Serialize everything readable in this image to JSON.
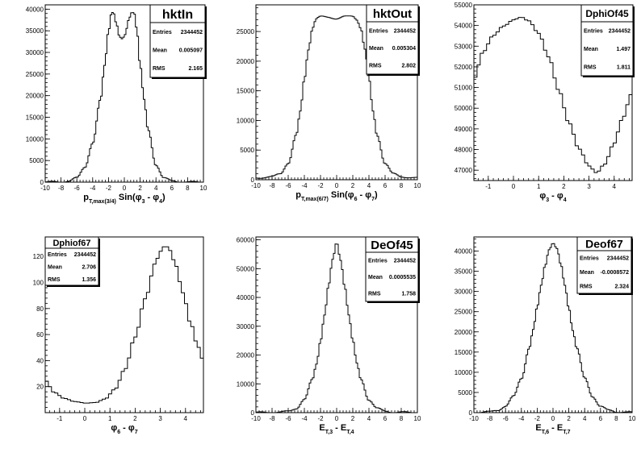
{
  "chart_data": [
    {
      "type": "histogram",
      "stats": {
        "title": "hktIn",
        "entries_label": "Entries",
        "entries": "2344452",
        "mean_label": "Mean",
        "mean": "0.005097",
        "rms_label": "RMS",
        "rms": "2.165"
      },
      "xlabel_parts": [
        [
          "p",
          "n"
        ],
        [
          "T,max(3/4)",
          "sub"
        ],
        [
          " Sin(",
          "n"
        ],
        [
          "φ",
          "n"
        ],
        [
          "3",
          "sub"
        ],
        [
          " - ",
          "n"
        ],
        [
          "φ",
          "n"
        ],
        [
          "4",
          "sub"
        ],
        [
          ")",
          "n"
        ]
      ],
      "ylabel": "",
      "xlim": [
        -10,
        10
      ],
      "ylim": [
        0,
        41000
      ],
      "xticks": [
        -10,
        -8,
        -6,
        -4,
        -2,
        0,
        2,
        4,
        6,
        8,
        10
      ],
      "yticks": [
        0,
        5000,
        10000,
        15000,
        20000,
        25000,
        30000,
        35000,
        40000
      ],
      "profile_x": [
        -10,
        -8,
        -7,
        -6,
        -5,
        -4,
        -3,
        -2.5,
        -2,
        -1.6,
        -1.3,
        -1,
        -0.6,
        -0.3,
        0,
        0.3,
        0.6,
        1,
        1.3,
        1.6,
        2,
        2.5,
        3,
        4,
        5,
        6,
        7,
        8,
        10
      ],
      "profile_y": [
        30,
        50,
        250,
        1000,
        3500,
        9000,
        19000,
        27000,
        35000,
        39500,
        39000,
        36500,
        33500,
        33000,
        33500,
        35500,
        38000,
        39500,
        39000,
        35000,
        27000,
        19000,
        12000,
        4000,
        1000,
        250,
        60,
        30,
        20
      ]
    },
    {
      "type": "histogram",
      "stats": {
        "title": "hktOut",
        "entries_label": "Entries",
        "entries": "2344452",
        "mean_label": "Mean",
        "mean": "0.005304",
        "rms_label": "RMS",
        "rms": "2.802"
      },
      "xlabel_parts": [
        [
          "p",
          "n"
        ],
        [
          "T,max(6/7)",
          "sub"
        ],
        [
          " Sin(",
          "n"
        ],
        [
          "φ",
          "n"
        ],
        [
          "6",
          "sub"
        ],
        [
          " - ",
          "n"
        ],
        [
          "φ",
          "n"
        ],
        [
          "7",
          "sub"
        ],
        [
          ")",
          "n"
        ]
      ],
      "ylabel": "",
      "xlim": [
        -10,
        10
      ],
      "ylim": [
        0,
        29500
      ],
      "xticks": [
        -10,
        -8,
        -6,
        -4,
        -2,
        0,
        2,
        4,
        6,
        8,
        10
      ],
      "yticks": [
        0,
        5000,
        10000,
        15000,
        20000,
        25000
      ],
      "profile_x": [
        -10,
        -8,
        -7,
        -6,
        -5,
        -4.5,
        -4,
        -3.5,
        -3,
        -2.7,
        -2.4,
        -2,
        -1,
        0,
        1,
        2,
        2.4,
        2.7,
        3,
        3.5,
        4,
        4.5,
        5,
        6,
        7,
        8,
        10
      ],
      "profile_y": [
        300,
        500,
        1000,
        2800,
        7500,
        11500,
        17000,
        22000,
        25500,
        26700,
        27300,
        27500,
        27400,
        27200,
        27500,
        27600,
        27200,
        26500,
        25500,
        22000,
        17000,
        11500,
        7500,
        2800,
        1000,
        500,
        300
      ]
    },
    {
      "type": "histogram",
      "stats": {
        "title": "DphiOf45",
        "entries_label": "Entries",
        "entries": "2344452",
        "mean_label": "Mean",
        "mean": "1.497",
        "rms_label": "RMS",
        "rms": "1.811"
      },
      "xlabel_parts": [
        [
          "φ",
          "n"
        ],
        [
          "3",
          "sub"
        ],
        [
          " - ",
          "n"
        ],
        [
          "φ",
          "n"
        ],
        [
          "4",
          "sub"
        ]
      ],
      "ylabel": "",
      "xlim": [
        -1.571,
        4.712
      ],
      "ylim": [
        46500,
        55000
      ],
      "xticks": [
        -1,
        0,
        1,
        2,
        3,
        4
      ],
      "yticks": [
        47000,
        48000,
        49000,
        50000,
        51000,
        52000,
        53000,
        54000,
        55000
      ],
      "profile_x": [
        -1.571,
        -1.2,
        -0.8,
        -0.4,
        0,
        0.3,
        0.6,
        1.0,
        1.4,
        1.8,
        2.2,
        2.6,
        3.0,
        3.3,
        3.6,
        4.0,
        4.3,
        4.712
      ],
      "profile_y": [
        51400,
        52700,
        53500,
        54000,
        54300,
        54400,
        54200,
        53600,
        52500,
        50900,
        49300,
        48000,
        47200,
        46900,
        47300,
        48300,
        49400,
        50700
      ]
    },
    {
      "type": "histogram",
      "stats": {
        "title": "Dphiof67",
        "entries_label": "Entries",
        "entries": "2344452",
        "mean_label": "Mean",
        "mean": "2.706",
        "rms_label": "RMS",
        "rms": "1.356"
      },
      "xlabel_parts": [
        [
          "φ",
          "n"
        ],
        [
          "6",
          "sub"
        ],
        [
          " - ",
          "n"
        ],
        [
          "φ",
          "n"
        ],
        [
          "7",
          "sub"
        ]
      ],
      "ylabel": "",
      "xlim": [
        -1.571,
        4.712
      ],
      "ylim": [
        0,
        135
      ],
      "xticks": [
        -1,
        0,
        1,
        2,
        3,
        4
      ],
      "yticks": [
        20,
        40,
        60,
        80,
        100,
        120
      ],
      "profile_x": [
        -1.571,
        -1.2,
        -0.8,
        -0.4,
        0,
        0.4,
        0.8,
        1.2,
        1.6,
        2.0,
        2.4,
        2.8,
        3.0,
        3.2,
        3.4,
        3.6,
        3.9,
        4.2,
        4.5,
        4.712
      ],
      "profile_y": [
        25,
        16,
        11,
        8,
        7,
        8,
        11,
        18,
        33,
        58,
        88,
        115,
        124,
        128,
        124,
        113,
        92,
        69,
        51,
        40
      ]
    },
    {
      "type": "histogram",
      "stats": {
        "title": "DeOf45",
        "entries_label": "Entries",
        "entries": "2344452",
        "mean_label": "Mean",
        "mean": "0.0005535",
        "rms_label": "RMS",
        "rms": "1.758"
      },
      "xlabel_parts": [
        [
          "E",
          "n"
        ],
        [
          "T,3",
          "sub"
        ],
        [
          " - E",
          "n"
        ],
        [
          "T,4",
          "sub"
        ]
      ],
      "ylabel": "",
      "xlim": [
        -10,
        10
      ],
      "ylim": [
        0,
        61000
      ],
      "xticks": [
        -10,
        -8,
        -6,
        -4,
        -2,
        0,
        2,
        4,
        6,
        8,
        10
      ],
      "yticks": [
        0,
        10000,
        20000,
        30000,
        40000,
        50000,
        60000
      ],
      "profile_x": [
        -10,
        -7,
        -6,
        -5,
        -4,
        -3,
        -2.5,
        -2,
        -1.5,
        -1,
        -0.5,
        0,
        0.5,
        1,
        1.5,
        2,
        2.5,
        3,
        4,
        5,
        6,
        7,
        10
      ],
      "profile_y": [
        50,
        150,
        500,
        1500,
        4500,
        11500,
        17000,
        25000,
        34000,
        44000,
        53000,
        59000,
        53000,
        44000,
        34000,
        25000,
        17000,
        11500,
        4500,
        1500,
        500,
        150,
        50
      ]
    },
    {
      "type": "histogram",
      "stats": {
        "title": "Deof67",
        "entries_label": "Entries",
        "entries": "2344452",
        "mean_label": "Mean",
        "mean": "-0.0008572",
        "rms_label": "RMS",
        "rms": "2.324"
      },
      "xlabel_parts": [
        [
          "E",
          "n"
        ],
        [
          "T,6",
          "sub"
        ],
        [
          " - E",
          "n"
        ],
        [
          "T,7",
          "sub"
        ]
      ],
      "ylabel": "",
      "xlim": [
        -10,
        10
      ],
      "ylim": [
        0,
        43500
      ],
      "xticks": [
        -10,
        -8,
        -6,
        -4,
        -2,
        0,
        2,
        4,
        6,
        8,
        10
      ],
      "yticks": [
        0,
        5000,
        10000,
        15000,
        20000,
        25000,
        30000,
        35000,
        40000
      ],
      "profile_x": [
        -10,
        -8,
        -7,
        -6,
        -5,
        -4,
        -3,
        -2.5,
        -2,
        -1.5,
        -1,
        -0.5,
        0,
        0.5,
        1,
        1.5,
        2,
        2.5,
        3,
        4,
        5,
        6,
        7,
        8,
        10
      ],
      "profile_y": [
        50,
        200,
        600,
        1600,
        4000,
        8500,
        16000,
        20500,
        26000,
        31500,
        36500,
        40500,
        42000,
        40500,
        36500,
        31500,
        26000,
        20500,
        16000,
        8500,
        4000,
        1600,
        600,
        200,
        50
      ]
    }
  ]
}
